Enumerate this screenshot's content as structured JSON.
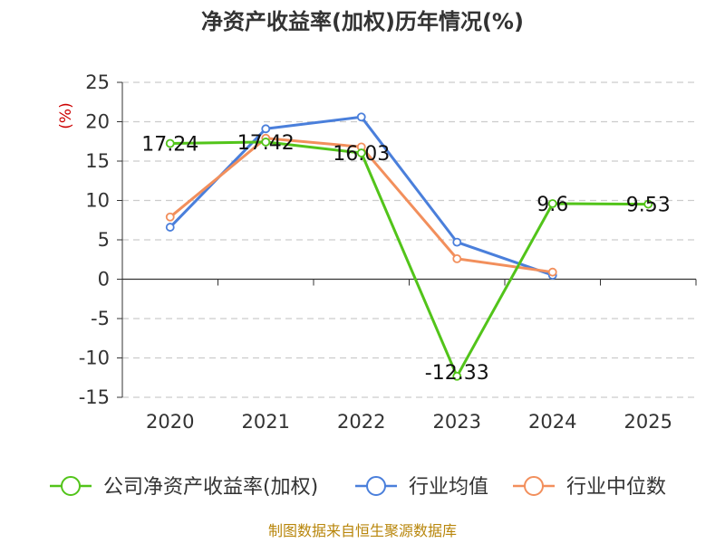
{
  "chart_data": {
    "type": "line",
    "title": "净资产收益率(加权)历年情况(%)",
    "ylabel": "(%)",
    "xlabel": "",
    "categories": [
      "2020",
      "2021",
      "2022",
      "2023",
      "2024",
      "2025"
    ],
    "ylim": [
      -15,
      25
    ],
    "yticks": [
      25,
      20,
      15,
      10,
      5,
      0,
      -5,
      -10,
      -15
    ],
    "grid": true,
    "legend_position": "bottom",
    "series": [
      {
        "name": "公司净资产收益率(加权)",
        "color": "#52c41a",
        "values": [
          17.24,
          17.42,
          16.03,
          -12.33,
          9.6,
          9.53
        ],
        "labels": [
          "17.24",
          "17.42",
          "16.03",
          "-12.33",
          "9.6",
          "9.53"
        ]
      },
      {
        "name": "行业均值",
        "color": "#4a7fdb",
        "values": [
          6.6,
          19.1,
          20.6,
          4.7,
          0.5,
          null
        ]
      },
      {
        "name": "行业中位数",
        "color": "#f28f5c",
        "values": [
          7.9,
          17.9,
          16.8,
          2.6,
          0.9,
          null
        ]
      }
    ],
    "source": "制图数据来自恒生聚源数据库"
  }
}
